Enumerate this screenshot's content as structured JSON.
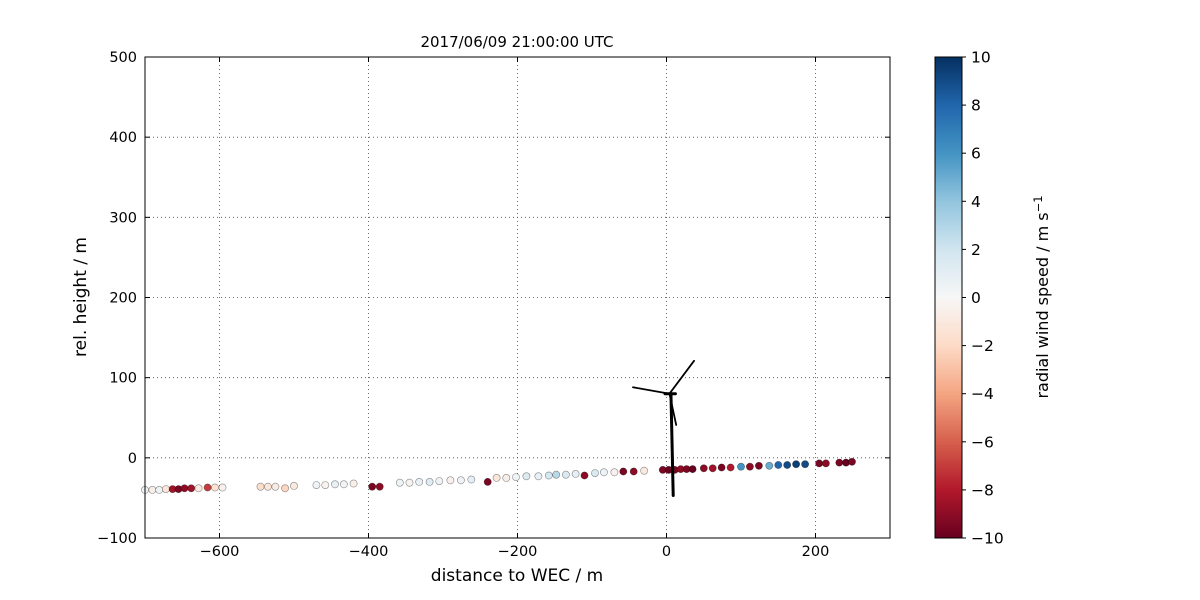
{
  "figure": {
    "title": "2017/06/09 21:00:00 UTC",
    "xlabel": "distance to WEC / m",
    "ylabel": "rel. height / m",
    "colorbar_label_main": "radial wind speed / m s",
    "colorbar_label_exp": "−1"
  },
  "chart_data": {
    "type": "scatter",
    "title": "2017/06/09 21:00:00 UTC",
    "xlabel": "distance to WEC / m",
    "ylabel": "rel. height / m",
    "xlim": [
      -700,
      300
    ],
    "ylim": [
      -100,
      500
    ],
    "xticks": [
      -600,
      -400,
      -200,
      0,
      200
    ],
    "yticks": [
      -100,
      0,
      100,
      200,
      300,
      400,
      500
    ],
    "grid": true,
    "colorbar": {
      "label": "radial wind speed / m s⁻¹",
      "range": [
        -10,
        10
      ],
      "ticks": [
        10,
        8,
        6,
        4,
        2,
        0,
        -2,
        -4,
        -6,
        -8,
        -10
      ],
      "colormap": "RdBu",
      "stops": [
        {
          "v": -10,
          "color": "#67001f"
        },
        {
          "v": -8,
          "color": "#b2182b"
        },
        {
          "v": -6,
          "color": "#d6604d"
        },
        {
          "v": -4,
          "color": "#f4a582"
        },
        {
          "v": -2,
          "color": "#fddbc7"
        },
        {
          "v": 0,
          "color": "#f7f7f7"
        },
        {
          "v": 2,
          "color": "#d1e5f0"
        },
        {
          "v": 4,
          "color": "#92c5de"
        },
        {
          "v": 6,
          "color": "#4393c3"
        },
        {
          "v": 8,
          "color": "#2166ac"
        },
        {
          "v": 10,
          "color": "#053061"
        }
      ]
    },
    "points_format": "[x, y, radial_wind_speed]",
    "points": [
      [
        -700,
        -40,
        0.3
      ],
      [
        -690,
        -40,
        -0.6
      ],
      [
        -681,
        -40,
        0.5
      ],
      [
        -672,
        -39,
        -1.2
      ],
      [
        -663,
        -39,
        -8.5
      ],
      [
        -655,
        -39,
        -9.5
      ],
      [
        -647,
        -38,
        -9
      ],
      [
        -638,
        -38,
        -8.5
      ],
      [
        -628,
        -38,
        -1
      ],
      [
        -616,
        -37,
        -7
      ],
      [
        -606,
        -37,
        -1.5
      ],
      [
        -596,
        -37,
        -0.5
      ],
      [
        -545,
        -36,
        -1.8
      ],
      [
        -535,
        -36,
        -1.2
      ],
      [
        -525,
        -36,
        -0.8
      ],
      [
        -512,
        -38,
        -2.2
      ],
      [
        -500,
        -35,
        -1
      ],
      [
        -470,
        -34,
        0.5
      ],
      [
        -458,
        -34,
        -0.4
      ],
      [
        -445,
        -33,
        0.8
      ],
      [
        -433,
        -33,
        0.3
      ],
      [
        -420,
        -32,
        -0.6
      ],
      [
        -395,
        -36,
        -9.5
      ],
      [
        -385,
        -36,
        -9
      ],
      [
        -358,
        -31,
        0.5
      ],
      [
        -345,
        -31,
        -0.3
      ],
      [
        -332,
        -30,
        0.7
      ],
      [
        -318,
        -30,
        1.2
      ],
      [
        -305,
        -29,
        0.5
      ],
      [
        -290,
        -28,
        -0.5
      ],
      [
        -276,
        -28,
        0.4
      ],
      [
        -262,
        -27,
        0.9
      ],
      [
        -240,
        -30,
        -9.5
      ],
      [
        -228,
        -25,
        -1.2
      ],
      [
        -215,
        -25,
        -0.6
      ],
      [
        -202,
        -24,
        0.3
      ],
      [
        -188,
        -23,
        1.4
      ],
      [
        -172,
        -23,
        0.8
      ],
      [
        -158,
        -22,
        1.8
      ],
      [
        -148,
        -21,
        2.8
      ],
      [
        -135,
        -21,
        1.5
      ],
      [
        -122,
        -20,
        0.9
      ],
      [
        -110,
        -22,
        -9
      ],
      [
        -96,
        -19,
        1.6
      ],
      [
        -84,
        -18,
        0.6
      ],
      [
        -70,
        -18,
        -0.4
      ],
      [
        -58,
        -17,
        -9.5
      ],
      [
        -44,
        -17,
        -9
      ],
      [
        -30,
        -16,
        -1
      ],
      [
        -5,
        -15,
        -9.5
      ],
      [
        3,
        -15,
        -10
      ],
      [
        11,
        -15,
        -9.5
      ],
      [
        19,
        -14,
        -9
      ],
      [
        27,
        -14,
        -9.5
      ],
      [
        35,
        -14,
        -10
      ],
      [
        50,
        -13,
        -9
      ],
      [
        62,
        -13,
        -8.5
      ],
      [
        74,
        -12,
        -9.5
      ],
      [
        86,
        -12,
        -8
      ],
      [
        100,
        -11,
        6
      ],
      [
        112,
        -11,
        -9
      ],
      [
        124,
        -10,
        -9.5
      ],
      [
        138,
        -10,
        5
      ],
      [
        150,
        -9,
        8
      ],
      [
        162,
        -9,
        9
      ],
      [
        174,
        -8,
        9.5
      ],
      [
        186,
        -8,
        9
      ],
      [
        205,
        -7,
        -9.5
      ],
      [
        214,
        -7,
        -9
      ],
      [
        232,
        -6,
        -9.5
      ],
      [
        241,
        -6,
        -10
      ],
      [
        249,
        -5,
        -9.5
      ]
    ],
    "turbine": {
      "color": "#000000",
      "tower": [
        [
          9,
          -47
        ],
        [
          6,
          79
        ]
      ],
      "nacelle": [
        [
          -2,
          80
        ],
        [
          12,
          80
        ]
      ],
      "blades": [
        [
          [
            4,
            80
          ],
          [
            37,
            121
          ]
        ],
        [
          [
            4,
            80
          ],
          [
            -45,
            88
          ]
        ],
        [
          [
            4,
            80
          ],
          [
            13,
            41
          ]
        ]
      ]
    }
  }
}
